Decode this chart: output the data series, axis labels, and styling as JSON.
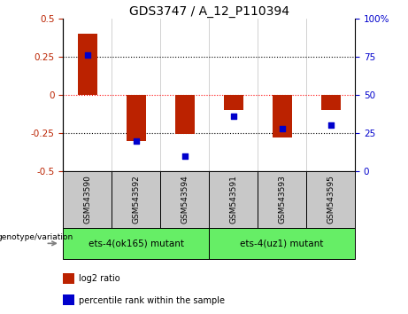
{
  "title": "GDS3747 / A_12_P110394",
  "samples": [
    "GSM543590",
    "GSM543592",
    "GSM543594",
    "GSM543591",
    "GSM543593",
    "GSM543595"
  ],
  "log2_ratio": [
    0.4,
    -0.3,
    -0.255,
    -0.1,
    -0.28,
    -0.1
  ],
  "percentile_rank": [
    76,
    20,
    10,
    36,
    28,
    30
  ],
  "ylim_left": [
    -0.5,
    0.5
  ],
  "ylim_right": [
    0,
    100
  ],
  "yticks_left": [
    -0.5,
    -0.25,
    0,
    0.25,
    0.5
  ],
  "yticks_right": [
    0,
    25,
    50,
    75,
    100
  ],
  "bar_color": "#BB2200",
  "scatter_color": "#0000CC",
  "group1_label": "ets-4(ok165) mutant",
  "group2_label": "ets-4(uz1) mutant",
  "group1_indices": [
    0,
    1,
    2
  ],
  "group2_indices": [
    3,
    4,
    5
  ],
  "group_bg_color": "#66EE66",
  "sample_bg_color": "#C8C8C8",
  "genotype_label": "genotype/variation",
  "legend_bar_label": "log2 ratio",
  "legend_scatter_label": "percentile rank within the sample",
  "dotted_lines_black": [
    -0.25,
    0.25
  ],
  "dotted_line_red": 0,
  "title_fontsize": 10,
  "tick_fontsize": 7.5,
  "sample_fontsize": 6.5,
  "group_fontsize": 7.5,
  "legend_fontsize": 7,
  "bar_width": 0.4
}
